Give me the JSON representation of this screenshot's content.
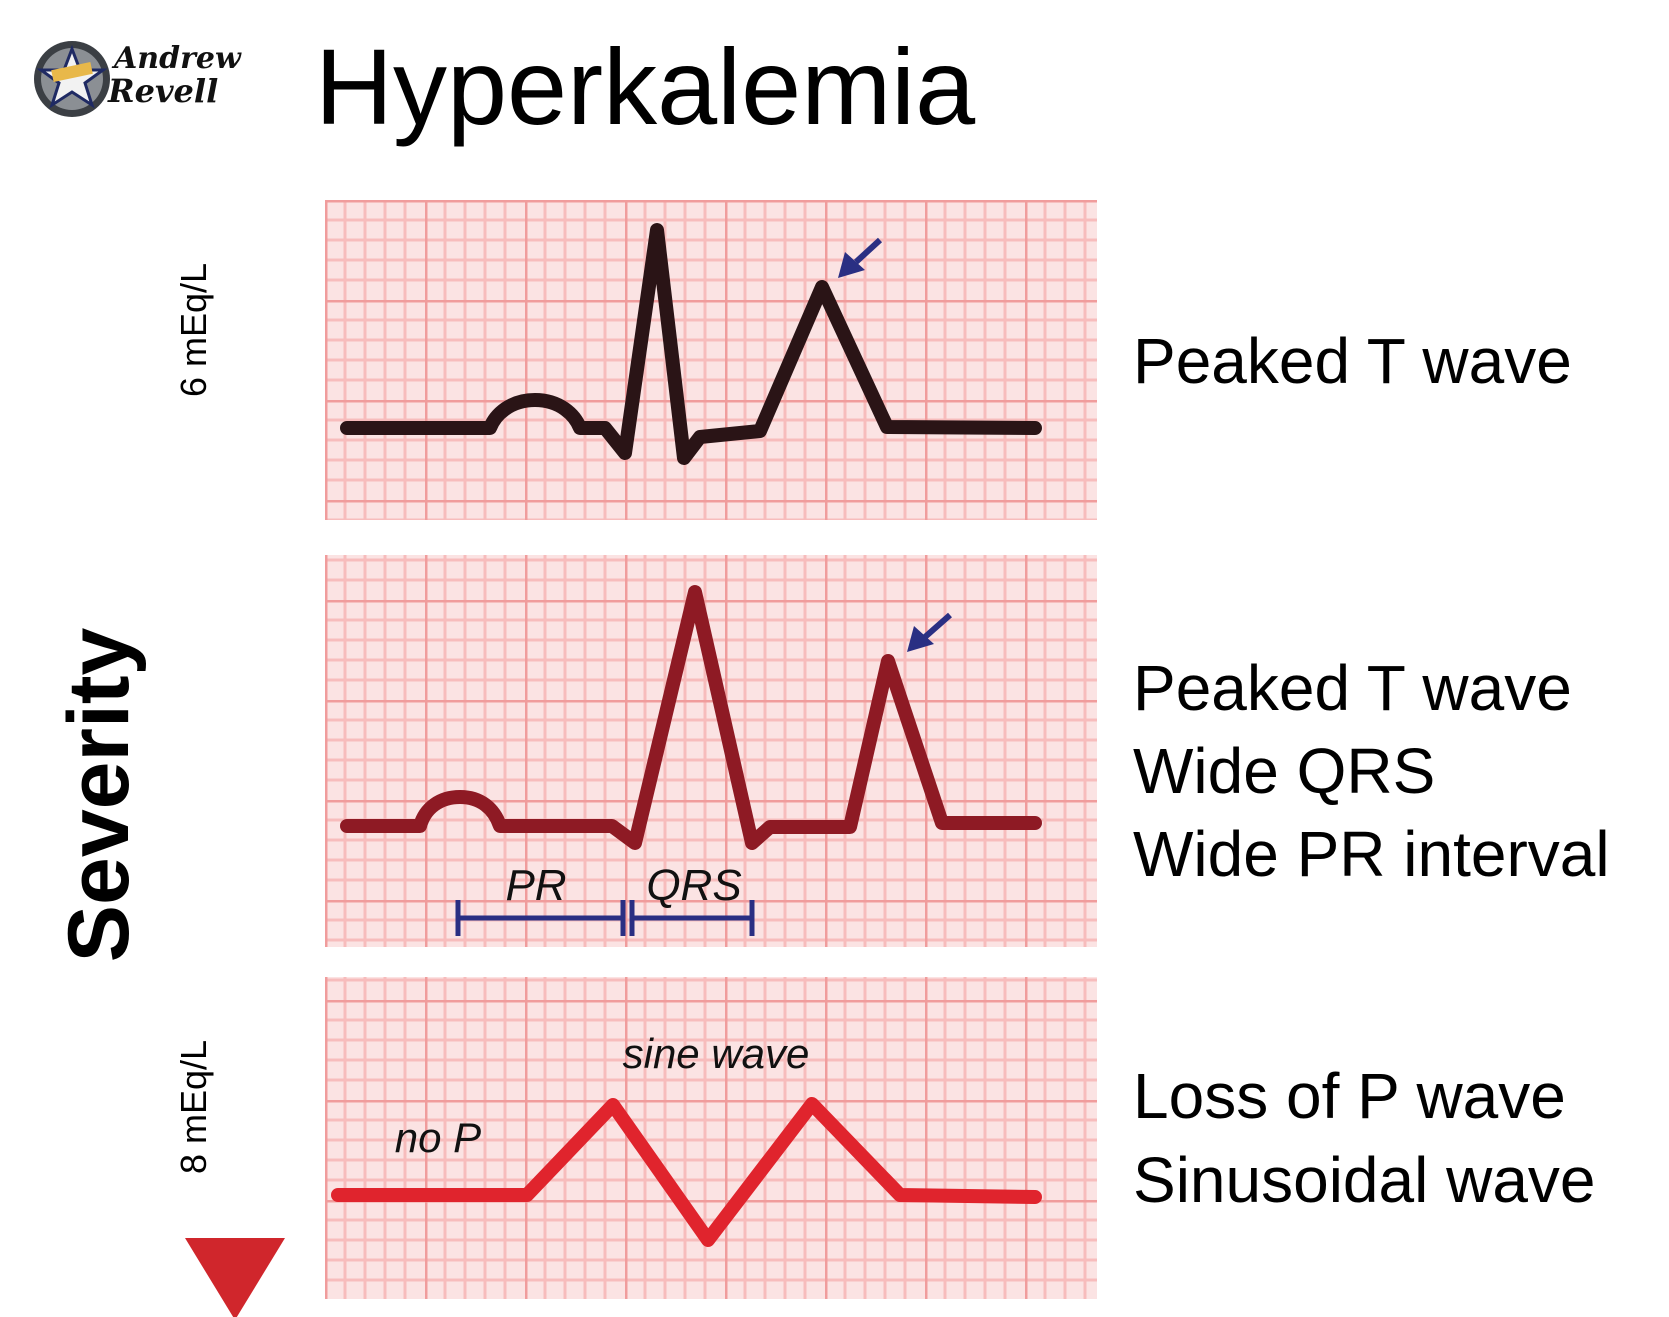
{
  "title": "Hyperkalemia",
  "logo": {
    "line1": "Andrew",
    "line2": "Revell",
    "icon": "star-badge-icon"
  },
  "severity_axis": {
    "label": "Severity",
    "top_label": "6 mEq/L",
    "bottom_label": "8 mEq/L"
  },
  "panels": [
    {
      "descriptions": [
        "Peaked T wave"
      ]
    },
    {
      "descriptions": [
        "Peaked T wave",
        "Wide QRS",
        "Wide PR interval"
      ],
      "interval_labels": {
        "pr": "PR",
        "qrs": "QRS"
      }
    },
    {
      "descriptions": [
        "Loss of P wave",
        "Sinusoidal wave"
      ],
      "annotations": {
        "no_p": "no P",
        "sine_wave": "sine wave"
      }
    }
  ],
  "colors": {
    "grid_bg": "#fbe3e3",
    "grid_fine": "#f6b9b9",
    "grid_major": "#f09c9c",
    "trace_1": "#2a1416",
    "trace_2": "#8e1a24",
    "trace_3": "#e0242d",
    "marker": "#2a2f83",
    "arrow_top": "#1e1010",
    "arrow_bottom": "#d0262c"
  }
}
